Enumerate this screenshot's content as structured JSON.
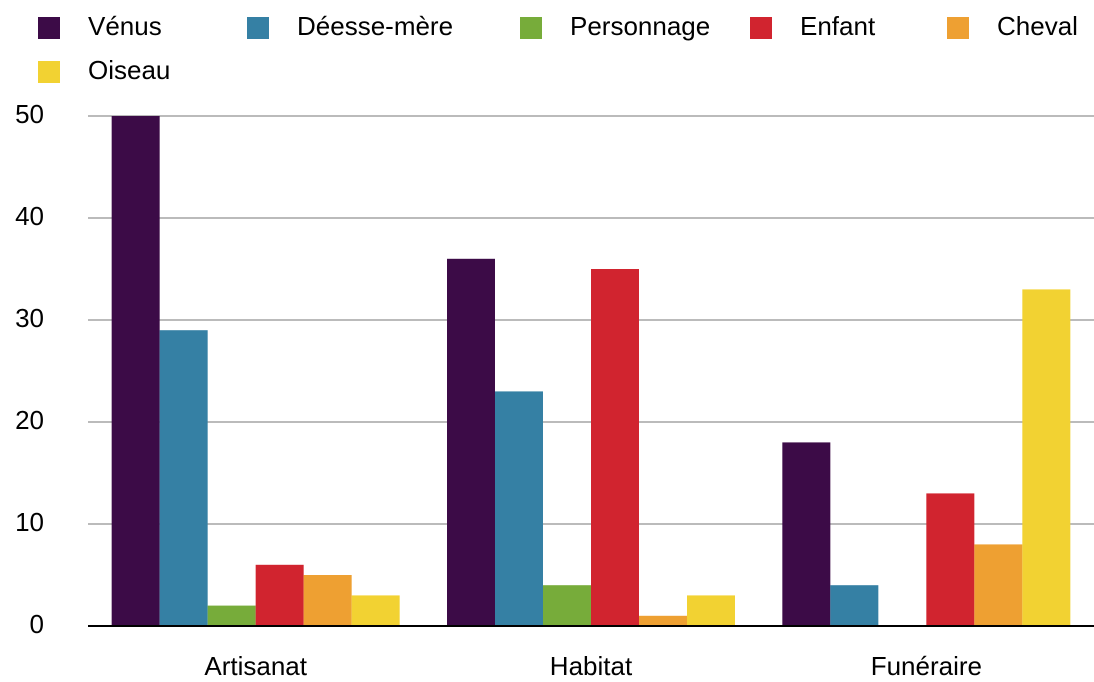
{
  "chart_data": {
    "type": "bar",
    "categories": [
      "Artisanat",
      "Habitat",
      "Funéraire"
    ],
    "series": [
      {
        "name": "Vénus",
        "color": "#3c0b47",
        "values": [
          50,
          36,
          18
        ]
      },
      {
        "name": "Déesse-mère",
        "color": "#3580a4",
        "values": [
          29,
          23,
          4
        ]
      },
      {
        "name": "Personnage",
        "color": "#77ac3a",
        "values": [
          2,
          4,
          0
        ]
      },
      {
        "name": "Enfant",
        "color": "#d1242f",
        "values": [
          6,
          35,
          13
        ]
      },
      {
        "name": "Cheval",
        "color": "#eea032",
        "values": [
          5,
          1,
          8
        ]
      },
      {
        "name": "Oiseau",
        "color": "#f2d232",
        "values": [
          3,
          3,
          33
        ]
      }
    ],
    "ylim": [
      0,
      50
    ],
    "yticks": [
      0,
      10,
      20,
      30,
      40,
      50
    ],
    "grid": true,
    "legend": "top"
  }
}
